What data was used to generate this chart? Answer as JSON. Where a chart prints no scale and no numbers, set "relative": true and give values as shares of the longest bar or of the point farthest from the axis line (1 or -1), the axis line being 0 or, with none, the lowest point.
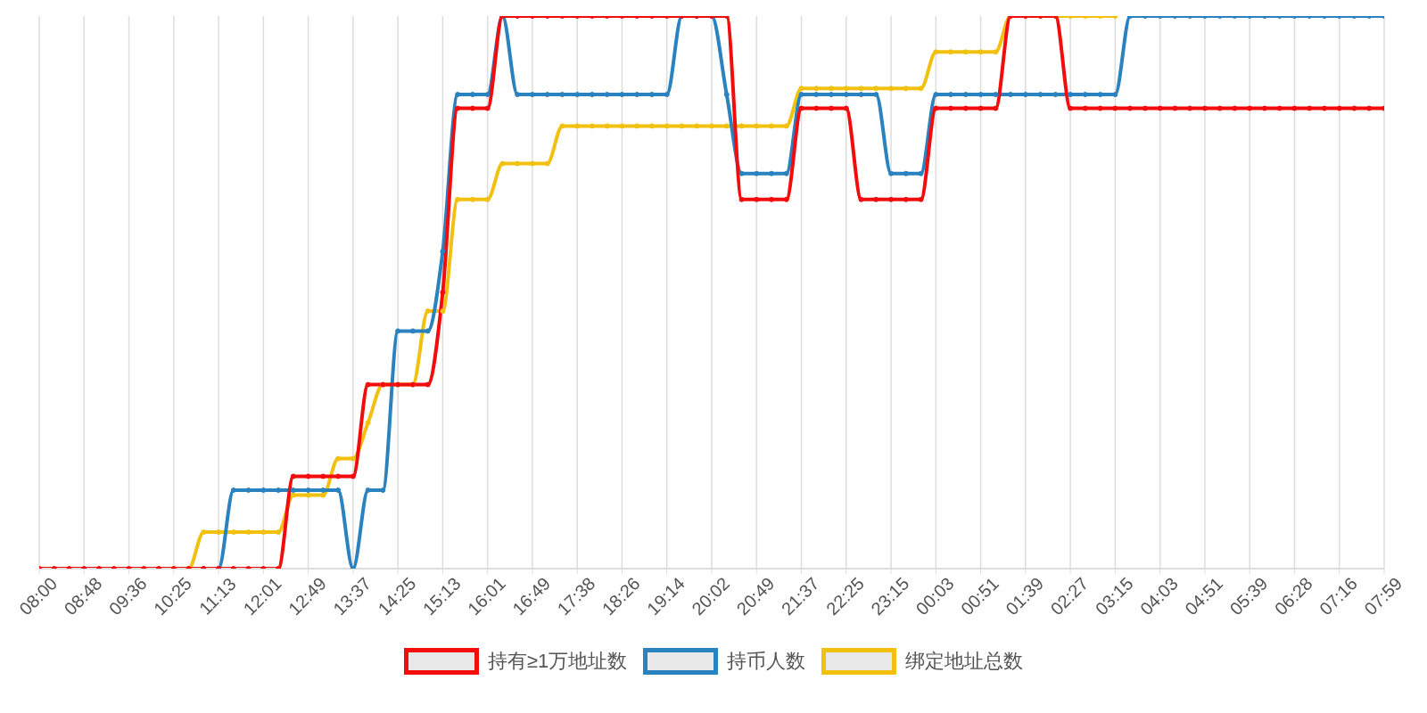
{
  "chart_data": {
    "type": "line",
    "relative": true,
    "grid": "x",
    "legend": "bottom",
    "marker": "circle",
    "line_style": "solid",
    "categories": [
      "08:00",
      null,
      null,
      "08:48",
      null,
      null,
      "09:36",
      null,
      null,
      "10:25",
      null,
      null,
      "11:13",
      null,
      null,
      "12:01",
      null,
      null,
      "12:49",
      null,
      null,
      "13:37",
      null,
      null,
      "14:25",
      null,
      null,
      "15:13",
      null,
      null,
      "16:01",
      null,
      null,
      "16:49",
      null,
      null,
      "17:38",
      null,
      null,
      "18:26",
      null,
      null,
      "19:14",
      null,
      null,
      "20:02",
      null,
      null,
      "20:49",
      null,
      null,
      "21:37",
      null,
      null,
      "22:25",
      null,
      null,
      "23:15",
      null,
      null,
      "00:03",
      null,
      null,
      "00:51",
      null,
      null,
      "01:39",
      null,
      null,
      "02:27",
      null,
      null,
      "03:15",
      null,
      null,
      "04:03",
      null,
      null,
      "04:51",
      null,
      null,
      "05:39",
      null,
      null,
      "06:28",
      null,
      null,
      "07:16",
      null,
      null,
      "07:59"
    ],
    "series": [
      {
        "name": "持有≥1万地址数",
        "color": "#f20c0c",
        "values": [
          0,
          0,
          0,
          0,
          0,
          0,
          0,
          0,
          0,
          0,
          0,
          0,
          0,
          0,
          0,
          0,
          0,
          0.167,
          0.167,
          0.167,
          0.167,
          0.167,
          0.333,
          0.333,
          0.333,
          0.333,
          0.333,
          0.5,
          0.833,
          0.833,
          0.833,
          1,
          1,
          1,
          1,
          1,
          1,
          1,
          1,
          1,
          1,
          1,
          1,
          1,
          1,
          1,
          1,
          0.668,
          0.668,
          0.668,
          0.668,
          0.833,
          0.833,
          0.833,
          0.833,
          0.668,
          0.668,
          0.668,
          0.668,
          0.668,
          0.833,
          0.833,
          0.833,
          0.833,
          0.833,
          1,
          1,
          1,
          1,
          0.833,
          0.833,
          0.833,
          0.833,
          0.833,
          0.833,
          0.833,
          0.833,
          0.833,
          0.833,
          0.833,
          0.833,
          0.833,
          0.833,
          0.833,
          0.833,
          0.833,
          0.833,
          0.833,
          0.833,
          0.833,
          0.833
        ]
      },
      {
        "name": "持币人数",
        "color": "#2a82bf",
        "values": [
          null,
          null,
          null,
          null,
          null,
          null,
          null,
          null,
          null,
          null,
          null,
          0,
          0,
          0.142,
          0.142,
          0.142,
          0.142,
          0.142,
          0.142,
          0.142,
          0.142,
          0,
          0.142,
          0.142,
          0.43,
          0.43,
          0.43,
          0.574,
          0.858,
          0.858,
          0.858,
          1,
          0.858,
          0.858,
          0.858,
          0.858,
          0.858,
          0.858,
          0.858,
          0.858,
          0.858,
          0.858,
          0.858,
          1,
          1,
          1,
          0.858,
          0.715,
          0.715,
          0.715,
          0.715,
          0.858,
          0.858,
          0.858,
          0.858,
          0.858,
          0.858,
          0.715,
          0.715,
          0.715,
          0.858,
          0.858,
          0.858,
          0.858,
          0.858,
          0.858,
          0.858,
          0.858,
          0.858,
          0.858,
          0.858,
          0.858,
          0.858,
          1,
          1,
          1,
          1,
          1,
          1,
          1,
          1,
          1,
          1,
          1,
          1,
          1,
          1,
          1,
          1,
          1,
          1
        ]
      },
      {
        "name": "绑定地址总数",
        "color": "#f2c10f",
        "values": [
          null,
          null,
          null,
          null,
          null,
          null,
          null,
          null,
          null,
          0,
          0,
          0.066,
          0.066,
          0.066,
          0.066,
          0.066,
          0.066,
          0.133,
          0.133,
          0.133,
          0.199,
          0.199,
          0.264,
          0.333,
          0.333,
          0.333,
          0.466,
          0.466,
          0.668,
          0.668,
          0.668,
          0.733,
          0.733,
          0.733,
          0.733,
          0.801,
          0.801,
          0.801,
          0.801,
          0.801,
          0.801,
          0.801,
          0.801,
          0.801,
          0.801,
          0.801,
          0.801,
          0.801,
          0.801,
          0.801,
          0.801,
          0.869,
          0.869,
          0.869,
          0.869,
          0.869,
          0.869,
          0.869,
          0.869,
          0.869,
          0.935,
          0.935,
          0.935,
          0.935,
          0.935,
          1,
          1,
          1,
          1,
          1,
          1,
          1,
          1,
          null,
          null,
          null,
          null,
          null,
          null,
          null,
          null,
          null,
          null,
          null,
          null,
          null,
          null,
          null,
          null,
          null,
          null
        ]
      }
    ]
  }
}
